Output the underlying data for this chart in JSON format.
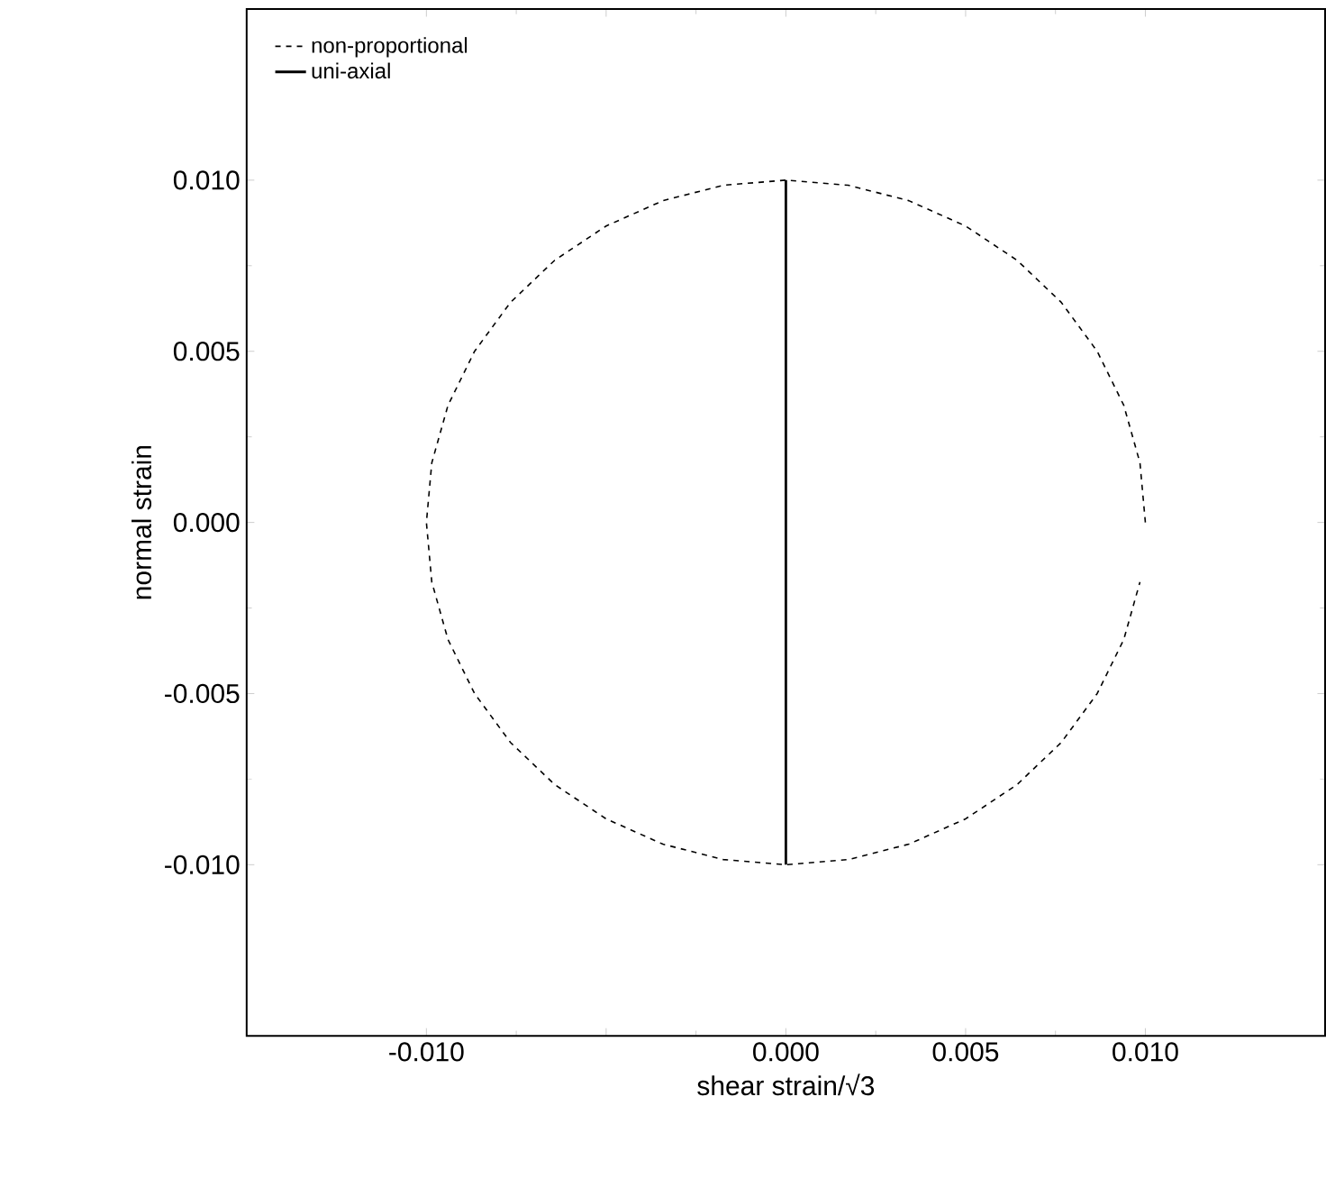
{
  "chart_data": {
    "type": "line",
    "xlabel": "shear strain/√3",
    "ylabel": "normal strain",
    "xlim": [
      -0.015,
      0.015
    ],
    "ylim": [
      -0.015,
      0.015
    ],
    "xticks": [
      {
        "value": -0.01,
        "label": "-0.010"
      },
      {
        "value": -0.005,
        "label": null
      },
      {
        "value": 0.0,
        "label": "0.000"
      },
      {
        "value": 0.005,
        "label": "0.005"
      },
      {
        "value": 0.01,
        "label": "0.010"
      }
    ],
    "yticks": [
      {
        "value": -0.01,
        "label": "-0.010"
      },
      {
        "value": -0.005,
        "label": "-0.005"
      },
      {
        "value": 0.0,
        "label": "0.000"
      },
      {
        "value": 0.005,
        "label": "0.005"
      },
      {
        "value": 0.01,
        "label": "0.010"
      }
    ],
    "legend": "top left",
    "series": [
      {
        "name": "non-proportional",
        "color": "#000000",
        "line_style": "dashed",
        "x": [
          0.01,
          0.00985,
          0.0094,
          0.00866,
          0.00766,
          0.00643,
          0.005,
          0.00342,
          0.00174,
          0.0,
          -0.00174,
          -0.00342,
          -0.005,
          -0.00643,
          -0.00766,
          -0.00866,
          -0.0094,
          -0.00985,
          -0.01,
          -0.00985,
          -0.0094,
          -0.00866,
          -0.00766,
          -0.00643,
          -0.005,
          -0.00342,
          -0.00174,
          0.0,
          0.00174,
          0.00342,
          0.005,
          0.00643,
          0.00766,
          0.00866,
          0.0094,
          0.00985
        ],
        "values": [
          0.0,
          0.00174,
          0.00342,
          0.005,
          0.00643,
          0.00766,
          0.00866,
          0.0094,
          0.00985,
          0.01,
          0.00985,
          0.0094,
          0.00866,
          0.00766,
          0.00643,
          0.005,
          0.00342,
          0.00174,
          0.0,
          -0.00174,
          -0.00342,
          -0.005,
          -0.00643,
          -0.00766,
          -0.00866,
          -0.0094,
          -0.00985,
          -0.01,
          -0.00985,
          -0.0094,
          -0.00866,
          -0.00766,
          -0.00643,
          -0.005,
          -0.00342,
          -0.00174
        ]
      },
      {
        "name": "uni-axial",
        "color": "#000000",
        "line_style": "solid",
        "x": [
          0.0,
          0.0
        ],
        "values": [
          -0.01,
          0.01
        ]
      }
    ]
  }
}
